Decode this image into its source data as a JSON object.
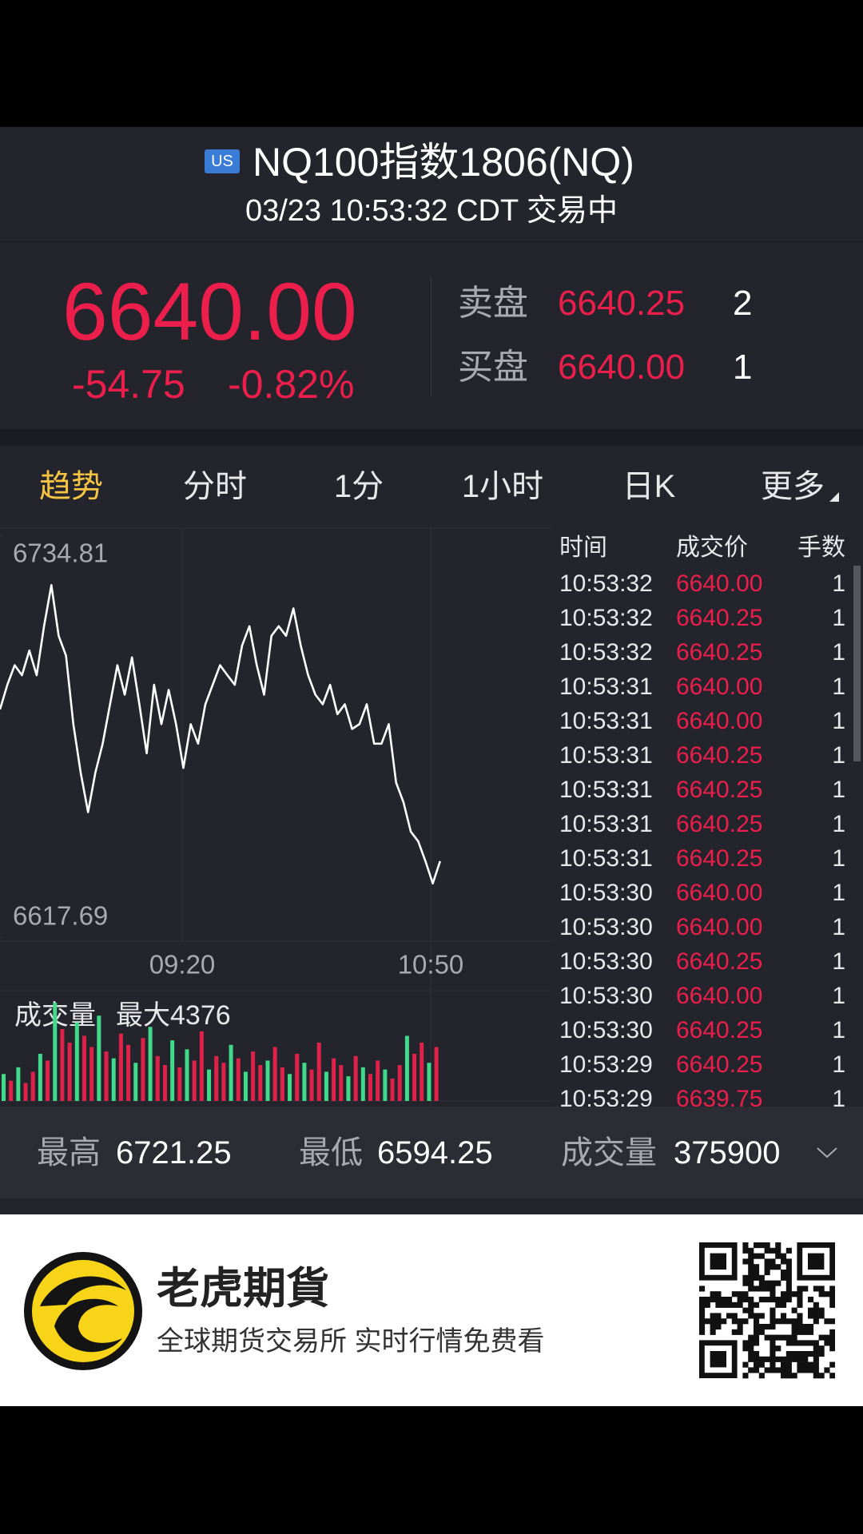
{
  "header": {
    "badge": "US",
    "title": "NQ100指数1806(NQ)",
    "subtitle": "03/23 10:53:32 CDT 交易中"
  },
  "quote": {
    "price": "6640.00",
    "change": "-54.75",
    "change_pct": "-0.82%",
    "ask_label": "卖盘",
    "ask_price": "6640.25",
    "ask_qty": "2",
    "bid_label": "买盘",
    "bid_price": "6640.00",
    "bid_qty": "1"
  },
  "tabs": [
    "趋势",
    "分时",
    "1分",
    "1小时",
    "日K",
    "更多"
  ],
  "chart": {
    "type": "line",
    "color": "#ffffff",
    "ylim": [
      6617.69,
      6734.81
    ],
    "yticks": [
      6617.69,
      6734.81
    ],
    "xticks": [
      "09:20",
      "10:50"
    ],
    "values": [
      6684.2,
      6691.4,
      6697.1,
      6694.2,
      6701.4,
      6694.2,
      6708.5,
      6720.5,
      6705.7,
      6699.9,
      6679.9,
      6665.7,
      6654.2,
      6665.7,
      6674.2,
      6685.7,
      6697.1,
      6688.5,
      6699.4,
      6685.7,
      6671.4,
      6691.4,
      6679.9,
      6689.9,
      6679.9,
      6667.1,
      6679.9,
      6674.2,
      6685.7,
      6691.4,
      6697.1,
      6694.2,
      6691.4,
      6702.8,
      6708.5,
      6697.1,
      6688.5,
      6705.7,
      6708.5,
      6705.7,
      6713.7,
      6702.8,
      6694.2,
      6688.5,
      6685.7,
      6691.4,
      6682.8,
      6685.7,
      6678.5,
      6679.9,
      6685.7,
      6674.2,
      6674.2,
      6679.9,
      6662.8,
      6657.1,
      6648.5,
      6645.7,
      6639.9,
      6633.4,
      6639.9
    ]
  },
  "volume": {
    "type": "bar",
    "title": "成交量",
    "max_label": "最大4376",
    "ylim": [
      0,
      4376
    ],
    "values": [
      1200,
      900,
      1500,
      800,
      1300,
      2100,
      1800,
      4376,
      3200,
      2600,
      3500,
      2900,
      2400,
      3800,
      2200,
      1900,
      3000,
      2500,
      1700,
      2800,
      3300,
      2000,
      1600,
      2700,
      1500,
      2300,
      1800,
      3100,
      1400,
      2000,
      1700,
      2500,
      1900,
      1300,
      2200,
      1600,
      1800,
      2400,
      1500,
      1200,
      2100,
      1700,
      1400,
      2600,
      1300,
      1900,
      1600,
      1100,
      2000,
      1500,
      1200,
      1800,
      1400,
      1000,
      1600,
      2900,
      2100,
      2600,
      1700,
      2400
    ],
    "colors": [
      "#41d98a",
      "#e0224a",
      "#41d98a",
      "#e0224a",
      "#e0224a",
      "#41d98a",
      "#e0224a",
      "#41d98a",
      "#e0224a",
      "#e0224a",
      "#41d98a",
      "#e0224a",
      "#e0224a",
      "#41d98a",
      "#e0224a",
      "#41d98a",
      "#e0224a",
      "#e0224a",
      "#41d98a",
      "#e0224a",
      "#41d98a",
      "#e0224a",
      "#e0224a",
      "#41d98a",
      "#e0224a",
      "#41d98a",
      "#e0224a",
      "#e0224a",
      "#41d98a",
      "#e0224a",
      "#e0224a",
      "#41d98a",
      "#e0224a",
      "#41d98a",
      "#e0224a",
      "#e0224a",
      "#41d98a",
      "#e0224a",
      "#e0224a",
      "#41d98a",
      "#e0224a",
      "#41d98a",
      "#e0224a",
      "#e0224a",
      "#41d98a",
      "#e0224a",
      "#e0224a",
      "#41d98a",
      "#e0224a",
      "#41d98a",
      "#e0224a",
      "#e0224a",
      "#41d98a",
      "#e0224a",
      "#e0224a",
      "#41d98a",
      "#e0224a",
      "#e0224a",
      "#41d98a",
      "#e0224a"
    ]
  },
  "ticks_table": {
    "columns": [
      "时间",
      "成交价",
      "手数"
    ],
    "rows": [
      [
        "10:53:32",
        "6640.00",
        "1"
      ],
      [
        "10:53:32",
        "6640.25",
        "1"
      ],
      [
        "10:53:32",
        "6640.25",
        "1"
      ],
      [
        "10:53:31",
        "6640.00",
        "1"
      ],
      [
        "10:53:31",
        "6640.00",
        "1"
      ],
      [
        "10:53:31",
        "6640.25",
        "1"
      ],
      [
        "10:53:31",
        "6640.25",
        "1"
      ],
      [
        "10:53:31",
        "6640.25",
        "1"
      ],
      [
        "10:53:31",
        "6640.25",
        "1"
      ],
      [
        "10:53:30",
        "6640.00",
        "1"
      ],
      [
        "10:53:30",
        "6640.00",
        "1"
      ],
      [
        "10:53:30",
        "6640.25",
        "1"
      ],
      [
        "10:53:30",
        "6640.00",
        "1"
      ],
      [
        "10:53:30",
        "6640.25",
        "1"
      ],
      [
        "10:53:29",
        "6640.25",
        "1"
      ],
      [
        "10:53:29",
        "6639.75",
        "1"
      ]
    ]
  },
  "stats": {
    "high_label": "最高",
    "high": "6721.25",
    "low_label": "最低",
    "low": "6594.25",
    "volume_label": "成交量",
    "volume": "375900"
  },
  "ad": {
    "brand": "老虎期貨",
    "slogan": "全球期货交易所 实时行情免费看"
  }
}
